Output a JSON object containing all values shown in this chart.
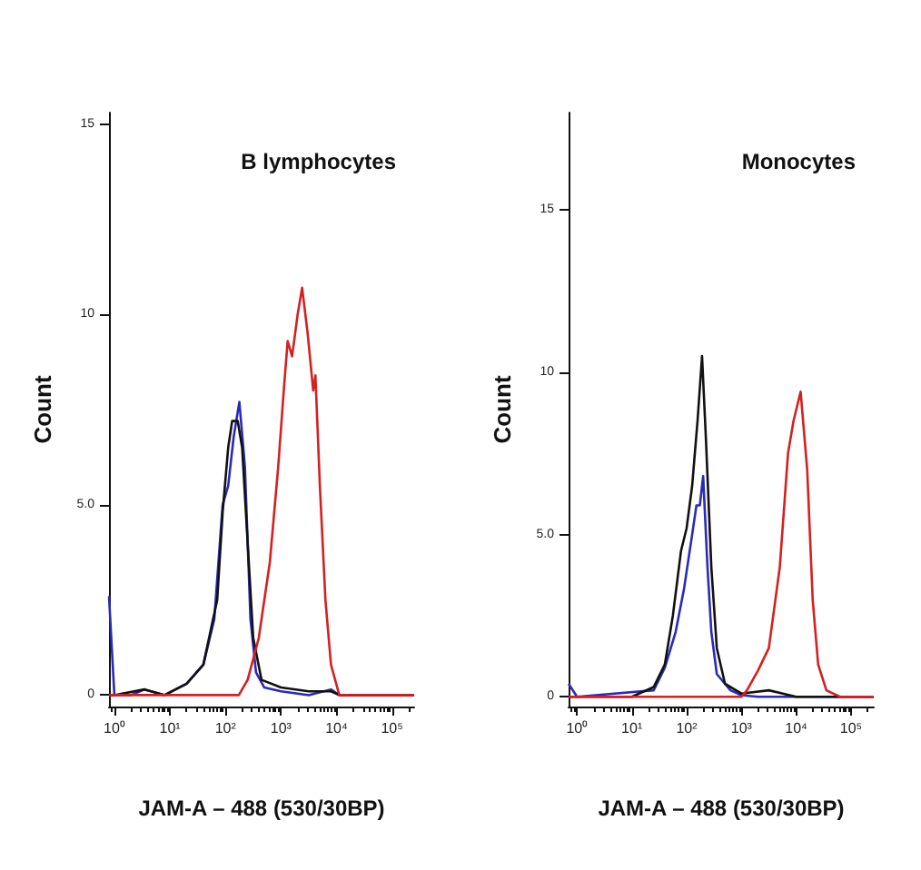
{
  "chart_data": [
    {
      "type": "line",
      "title": "B lymphocytes",
      "xlabel": "JAM-A – 488 (530/30BP)",
      "ylabel": "Count",
      "log": "x",
      "xlim": [
        0.8,
        250000
      ],
      "ylim": [
        -0.3,
        15.3
      ],
      "xticks": [
        {
          "value": 1,
          "label": "10⁰"
        },
        {
          "value": 10,
          "label": "10¹"
        },
        {
          "value": 100,
          "label": "10²"
        },
        {
          "value": 1000,
          "label": "10³"
        },
        {
          "value": 10000,
          "label": "10⁴"
        },
        {
          "value": 100000,
          "label": "10⁵"
        }
      ],
      "yticks": [
        0,
        {
          "value": 5,
          "label": "5.0"
        },
        10,
        15
      ],
      "series": [
        {
          "color": "#2a2ab8",
          "x": [
            0.8,
            1,
            2,
            3.5,
            8,
            20,
            40,
            63,
            89,
            112,
            141,
            178,
            224,
            282,
            355,
            501,
            1000,
            3162,
            7943,
            11220,
            250000
          ],
          "values": [
            2.6,
            0,
            0,
            0.15,
            0,
            0.3,
            0.8,
            2.0,
            5.0,
            5.5,
            6.8,
            7.7,
            6.0,
            2.0,
            0.6,
            0.2,
            0.1,
            0,
            0.15,
            0,
            0
          ]
        },
        {
          "color": "#111111",
          "x": [
            0.8,
            1,
            3.5,
            8,
            20,
            40,
            71,
            89,
            112,
            132,
            166,
            200,
            251,
            316,
            447,
            1000,
            3162,
            7943,
            11220,
            250000
          ],
          "values": [
            0,
            0,
            0.15,
            0,
            0.3,
            0.8,
            2.5,
            4.8,
            6.5,
            7.2,
            7.2,
            6.5,
            4.0,
            1.5,
            0.4,
            0.2,
            0.1,
            0.1,
            0,
            0
          ]
        },
        {
          "color": "#d42020",
          "x": [
            0.8,
            174,
            251,
            398,
            631,
            891,
            1122,
            1318,
            1585,
            1995,
            2399,
            3020,
            3802,
            4169,
            5012,
            6310,
            7943,
            11220,
            250000
          ],
          "values": [
            0,
            0,
            0.4,
            1.5,
            3.5,
            6.0,
            8.0,
            9.3,
            8.9,
            10.0,
            10.7,
            9.5,
            8.0,
            8.4,
            5.5,
            2.5,
            0.8,
            0,
            0
          ]
        }
      ]
    },
    {
      "type": "line",
      "title": "Monocytes",
      "xlabel": "JAM-A – 488 (530/30BP)",
      "ylabel": "Count",
      "log": "x",
      "xlim": [
        0.7,
        260000
      ],
      "ylim": [
        -0.3,
        18
      ],
      "xticks": [
        {
          "value": 1,
          "label": "10⁰"
        },
        {
          "value": 10,
          "label": "10¹"
        },
        {
          "value": 100,
          "label": "10²"
        },
        {
          "value": 1000,
          "label": "10³"
        },
        {
          "value": 10000,
          "label": "10⁴"
        },
        {
          "value": 100000,
          "label": "10⁵"
        }
      ],
      "yticks": [
        0,
        {
          "value": 5,
          "label": "5.0"
        },
        10,
        15
      ],
      "series": [
        {
          "color": "#2a2ab8",
          "x": [
            0.7,
            1,
            25,
            40,
            63,
            89,
            126,
            151,
            174,
            200,
            240,
            282,
            355,
            631,
            1000,
            1995,
            260000
          ],
          "values": [
            0.4,
            0,
            0.2,
            0.9,
            2.0,
            3.3,
            5.0,
            5.9,
            5.9,
            6.8,
            4.0,
            2.0,
            0.7,
            0.2,
            0.05,
            0,
            0
          ]
        },
        {
          "color": "#111111",
          "x": [
            0.7,
            10,
            25,
            40,
            56,
            79,
            100,
            126,
            158,
            191,
            224,
            282,
            355,
            501,
            1000,
            3162,
            10000,
            260000
          ],
          "values": [
            0,
            0,
            0.3,
            1.0,
            2.5,
            4.5,
            5.2,
            6.5,
            8.5,
            10.5,
            8.0,
            4.0,
            1.5,
            0.4,
            0.1,
            0.2,
            0,
            0
          ]
        },
        {
          "color": "#d42020",
          "x": [
            0.7,
            1000,
            1259,
            1995,
            3162,
            5012,
            7079,
            8913,
            12023,
            15849,
            19953,
            25119,
            35481,
            63096,
            260000
          ],
          "values": [
            0,
            0,
            0.2,
            0.8,
            1.5,
            4.0,
            7.5,
            8.5,
            9.4,
            7.0,
            3.0,
            1.0,
            0.2,
            0,
            0
          ]
        }
      ]
    }
  ]
}
